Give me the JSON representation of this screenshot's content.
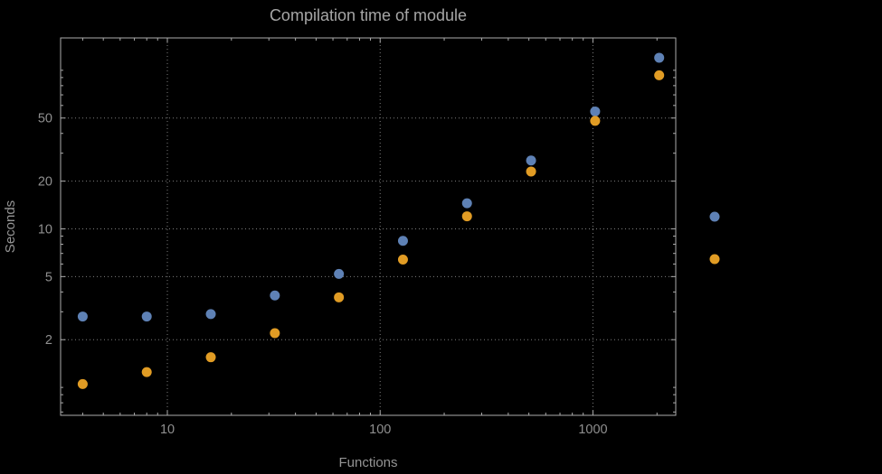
{
  "chart_data": {
    "type": "scatter",
    "title": "Compilation time of module",
    "xlabel": "Functions",
    "ylabel": "Seconds",
    "xscale": "log",
    "yscale": "log",
    "xlim": [
      3.15,
      2450
    ],
    "ylim": [
      0.667,
      160
    ],
    "grid": "dotted lines at labeled ticks",
    "legend_position": "right-outside",
    "x_ticks_labeled": [
      {
        "value": 10,
        "label": "10"
      },
      {
        "value": 100,
        "label": "100"
      },
      {
        "value": 1000,
        "label": "1000"
      }
    ],
    "y_ticks_labeled": [
      {
        "value": 2,
        "label": "2"
      },
      {
        "value": 5,
        "label": "5"
      },
      {
        "value": 10,
        "label": "10"
      },
      {
        "value": 20,
        "label": "20"
      },
      {
        "value": 50,
        "label": "50"
      }
    ],
    "x": [
      4,
      8,
      16,
      32,
      64,
      128,
      256,
      512,
      1024,
      2048
    ],
    "series": [
      {
        "name": "series-1",
        "color": "#5e81b5",
        "values": [
          2.8,
          2.8,
          2.9,
          3.8,
          5.2,
          8.4,
          14.5,
          27,
          55,
          120
        ]
      },
      {
        "name": "series-2",
        "color": "#e19c24",
        "values": [
          1.05,
          1.25,
          1.55,
          2.2,
          3.7,
          6.4,
          12,
          23,
          48,
          93
        ]
      }
    ]
  },
  "legend": {
    "markers": [
      {
        "name": "series-1-marker",
        "color": "#5e81b5",
        "label": ""
      },
      {
        "name": "series-2-marker",
        "color": "#e19c24",
        "label": ""
      }
    ]
  }
}
